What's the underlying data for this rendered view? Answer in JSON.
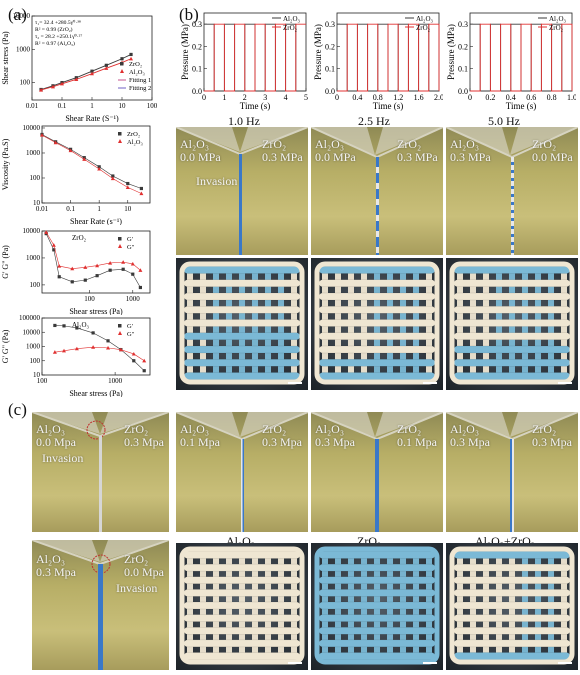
{
  "panel_labels": {
    "a": "(a)",
    "b": "(b)",
    "c": "(c)"
  },
  "chart_data": [
    {
      "type": "line",
      "ylabel": "Shear stress (Pa)",
      "xlabel": "Shear Rate (S⁻¹)",
      "x_ticks": [
        "0.01",
        "0.1",
        "1",
        "10",
        "100"
      ],
      "y_ticks": [
        "10000",
        "1000",
        "100"
      ],
      "annotations": [
        "τ₁= 32.4 +280.5γ̇⁰·³⁸",
        "R² = 0.99 (ZrO₂)",
        "τ₂ = 28.2 +250.1γ̇⁰·²⁷",
        "R² = 0.97 (Al₂O₃)"
      ],
      "legend": [
        "ZrO₂",
        "Al₂O₃",
        "Fitting 1",
        "Fitting 2"
      ],
      "series": [
        {
          "name": "ZrO₂",
          "x": [
            0.02,
            0.05,
            0.1,
            0.3,
            1,
            3,
            10,
            20
          ],
          "y": [
            62,
            80,
            100,
            140,
            220,
            330,
            520,
            700
          ]
        },
        {
          "name": "Al₂O₃",
          "x": [
            0.02,
            0.05,
            0.1,
            0.3,
            1,
            3,
            10,
            20
          ],
          "y": [
            60,
            75,
            92,
            125,
            185,
            270,
            400,
            520
          ]
        }
      ]
    },
    {
      "type": "line",
      "ylabel": "Viscosity (Pa.S)",
      "xlabel": "Shear Rate (s⁻¹)",
      "x_ticks": [
        "0.01",
        "0.1",
        "1",
        "10"
      ],
      "y_ticks": [
        "10000",
        "1000",
        "100",
        "10"
      ],
      "legend": [
        "ZrO₂",
        "Al₂O₃"
      ],
      "series": [
        {
          "name": "ZrO₂",
          "x": [
            0.01,
            0.03,
            0.1,
            0.3,
            1,
            3,
            10,
            30
          ],
          "y": [
            5500,
            2800,
            1400,
            650,
            280,
            120,
            60,
            38
          ]
        },
        {
          "name": "Al₂O₃",
          "x": [
            0.01,
            0.03,
            0.1,
            0.3,
            1,
            3,
            10,
            30
          ],
          "y": [
            5200,
            2600,
            1250,
            560,
            230,
            95,
            42,
            24
          ]
        }
      ]
    },
    {
      "type": "line",
      "ylabel": "G' G\" (Pa)",
      "xlabel": "Shear stress (Pa)",
      "x_ticks": [
        "100",
        "1000"
      ],
      "y_ticks": [
        "10000",
        "1000",
        "100"
      ],
      "title": "ZrO₂",
      "legend": [
        "G'",
        "G\""
      ],
      "series": [
        {
          "name": "G'",
          "x": [
            10,
            15,
            20,
            40,
            80,
            150,
            300,
            600,
            1000,
            1500
          ],
          "y": [
            8000,
            2000,
            200,
            130,
            150,
            220,
            350,
            380,
            250,
            80
          ]
        },
        {
          "name": "G\"",
          "x": [
            10,
            15,
            20,
            40,
            80,
            150,
            300,
            600,
            1000,
            1500
          ],
          "y": [
            9000,
            3000,
            500,
            400,
            450,
            520,
            650,
            700,
            600,
            350
          ]
        }
      ]
    },
    {
      "type": "line",
      "ylabel": "G' G\" (Pa)",
      "xlabel": "Shear stress (Pa)",
      "x_ticks": [
        "100",
        "1000"
      ],
      "y_ticks": [
        "100000",
        "10000",
        "1000",
        "100",
        "10"
      ],
      "title": "Al₂O₃",
      "legend": [
        "G'",
        "G\""
      ],
      "series": [
        {
          "name": "G'",
          "x": [
            150,
            200,
            300,
            500,
            800,
            1200,
            1800,
            2500
          ],
          "y": [
            30000,
            28000,
            20000,
            9000,
            2500,
            600,
            100,
            20
          ]
        },
        {
          "name": "G\"",
          "x": [
            150,
            200,
            300,
            500,
            800,
            1200,
            1800,
            2500
          ],
          "y": [
            400,
            500,
            700,
            900,
            800,
            600,
            300,
            100
          ]
        }
      ]
    },
    {
      "type": "line",
      "ylabel": "Pressure (MPa)",
      "xlabel": "Time (s)",
      "x_ticks": [
        "0",
        "1",
        "2",
        "3",
        "4",
        "5"
      ],
      "y_ticks": [
        "0.0",
        "0.1",
        "0.2",
        "0.3"
      ],
      "legend": [
        "Al₂O₃",
        "ZrO₂"
      ],
      "frequency_hz": 1.0,
      "period_s": 1.0,
      "xlim": [
        0,
        5
      ]
    },
    {
      "type": "line",
      "ylabel": "Pressure (MPa)",
      "xlabel": "Time (s)",
      "x_ticks": [
        "0",
        "0.4",
        "0.8",
        "1.2",
        "1.6",
        "2.0"
      ],
      "y_ticks": [
        "0.0",
        "0.1",
        "0.2",
        "0.3"
      ],
      "legend": [
        "Al₂O₃",
        "ZrO₂"
      ],
      "frequency_hz": 2.5,
      "period_s": 0.4,
      "xlim": [
        0,
        2
      ]
    },
    {
      "type": "line",
      "ylabel": "Pressure (MPa)",
      "xlabel": "Time (s)",
      "x_ticks": [
        "0",
        "0.2",
        "0.4",
        "0.6",
        "0.8",
        "1.0"
      ],
      "y_ticks": [
        "0.0",
        "0.1",
        "0.2",
        "0.3"
      ],
      "legend": [
        "Al₂O₃",
        "ZrO₂"
      ],
      "frequency_hz": 5.0,
      "period_s": 0.2,
      "xlim": [
        0,
        1
      ]
    }
  ],
  "freq_labels": [
    "1.0 Hz",
    "2.5 Hz",
    "5.0 Hz"
  ],
  "b_photos": [
    {
      "left": "Al₂O₃",
      "left_p": "0.0 MPa",
      "right": "ZrO₂",
      "right_p": "0.3 MPa",
      "note": "Invasion"
    },
    {
      "left": "Al₂O₃",
      "left_p": "0.0 MPa",
      "right": "ZrO₂",
      "right_p": "0.3 MPa"
    },
    {
      "left": "Al₂O₃",
      "left_p": "0.3 MPa",
      "right": "ZrO₂",
      "right_p": "0.0 MPa"
    }
  ],
  "c_photos": [
    {
      "left": "Al₂O₃",
      "left_p": "0.0 Mpa",
      "right": "ZrO₂",
      "right_p": "0.3 Mpa",
      "note": "Invasion"
    },
    {
      "left": "Al₂O₃",
      "left_p": "0.1 Mpa",
      "right": "ZrO₂",
      "right_p": "0.3 Mpa"
    },
    {
      "left": "Al₂O₃",
      "left_p": "0.3 Mpa",
      "right": "ZrO₂",
      "right_p": "0.1 Mpa"
    },
    {
      "left": "Al₂O₃",
      "left_p": "0.3 Mpa",
      "right": "ZrO₂",
      "right_p": "0.3 Mpa"
    },
    {
      "left": "Al₂O₃",
      "left_p": "0.3 Mpa",
      "right": "ZrO₂",
      "right_p": "0.0 Mpa",
      "note": "Invasion"
    }
  ],
  "c_captions": [
    "Al₂O₃",
    "ZrO₂",
    "Al₂O₃+ZrO₂"
  ],
  "colors": {
    "zro2": "#3a3a3a",
    "al2o3": "#e03030",
    "stream_blue": "#3a78c8",
    "stream_white": "#e8e8e8"
  }
}
